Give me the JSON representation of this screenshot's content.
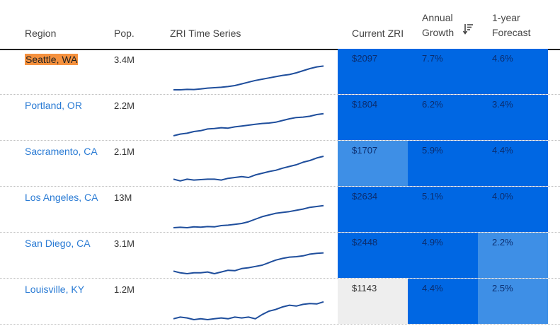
{
  "header": {
    "region": "Region",
    "pop": "Pop.",
    "zri_series": "ZRI Time Series",
    "current_zri": "Current ZRI",
    "annual_growth_1": "Annual",
    "annual_growth_2": "Growth",
    "forecast_1": "1-year",
    "forecast_2": "Forecast",
    "sort_icon": "sort-descending-icon"
  },
  "colors": {
    "dark_blue": "#0067e3",
    "mid_blue": "#3e8fe6",
    "light_gray": "#eeeeee",
    "highlight": "#f5913e",
    "link": "#2a7bd4",
    "sparkline": "#1f4e9c"
  },
  "rows": [
    {
      "region": "Seattle, WA",
      "pop": "3.4M",
      "zri": "$2097",
      "growth": "7.7%",
      "forecast": "4.6%",
      "zri_tone": "dark",
      "growth_tone": "dark",
      "forecast_tone": "dark",
      "highlighted": true,
      "series": [
        10,
        10,
        10.5,
        10.3,
        11,
        12,
        12.5,
        13,
        13.8,
        15,
        17,
        19,
        21,
        22.5,
        24,
        25.5,
        27,
        28,
        30,
        32.5,
        35,
        37,
        38
      ]
    },
    {
      "region": "Portland, OR",
      "pop": "2.2M",
      "zri": "$1804",
      "growth": "6.2%",
      "forecast": "3.4%",
      "zri_tone": "dark",
      "growth_tone": "dark",
      "forecast_tone": "dark",
      "highlighted": false,
      "series": [
        10,
        12,
        13,
        15,
        16,
        18,
        18.5,
        19.5,
        19,
        20.5,
        21.5,
        22.5,
        23.5,
        24.5,
        25,
        26,
        28,
        30,
        31.5,
        32,
        33,
        35,
        36
      ]
    },
    {
      "region": "Sacramento, CA",
      "pop": "2.1M",
      "zri": "$1707",
      "growth": "5.9%",
      "forecast": "4.4%",
      "zri_tone": "mid",
      "growth_tone": "dark",
      "forecast_tone": "dark",
      "highlighted": false,
      "series": [
        13,
        11,
        13,
        12,
        12.5,
        13,
        13,
        12,
        14,
        15,
        16,
        15,
        18,
        20,
        22,
        23.5,
        26,
        28,
        30,
        33,
        35,
        38,
        40
      ]
    },
    {
      "region": "Los Angeles, CA",
      "pop": "13M",
      "zri": "$2634",
      "growth": "5.1%",
      "forecast": "4.0%",
      "zri_tone": "dark",
      "growth_tone": "dark",
      "forecast_tone": "dark",
      "highlighted": false,
      "series": [
        10,
        10.5,
        10,
        11,
        10.7,
        11.3,
        11,
        12.5,
        13,
        14,
        15,
        17,
        20,
        23,
        25,
        27,
        28,
        29,
        30.5,
        32,
        34,
        35,
        36
      ]
    },
    {
      "region": "San Diego, CA",
      "pop": "3.1M",
      "zri": "$2448",
      "growth": "4.9%",
      "forecast": "2.2%",
      "zri_tone": "dark",
      "growth_tone": "dark",
      "forecast_tone": "mid",
      "highlighted": false,
      "series": [
        13,
        11,
        10,
        11,
        11,
        12,
        10,
        12,
        14,
        13.5,
        16,
        17,
        18.5,
        20,
        23,
        26,
        28,
        29.5,
        30,
        31,
        33,
        34,
        34.5
      ]
    },
    {
      "region": "Louisville, KY",
      "pop": "1.2M",
      "zri": "$1143",
      "growth": "4.4%",
      "forecast": "2.5%",
      "zri_tone": "light",
      "growth_tone": "dark",
      "forecast_tone": "mid",
      "highlighted": false,
      "series": [
        11,
        13,
        12,
        10,
        11,
        10,
        11,
        12,
        11,
        13,
        12,
        13,
        11,
        16,
        20,
        22,
        25,
        27,
        26,
        28,
        29,
        28.5,
        31
      ]
    }
  ]
}
